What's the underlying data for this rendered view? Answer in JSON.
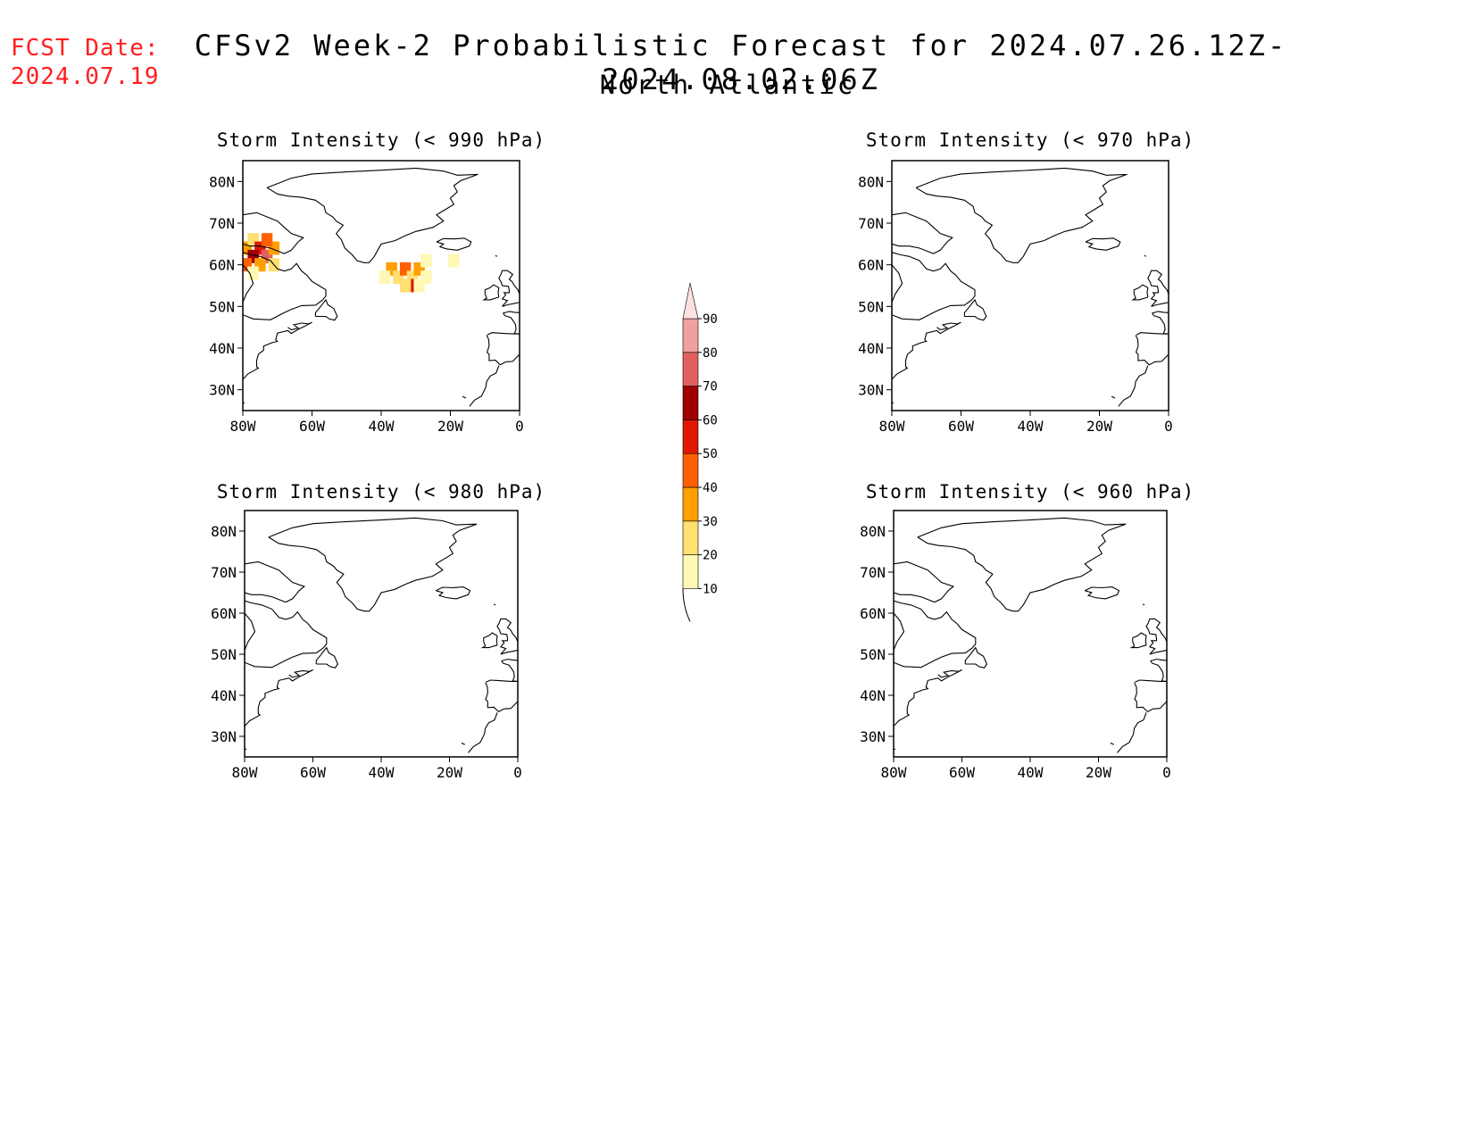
{
  "header": {
    "fcst_label": "FCST Date:",
    "fcst_date": "2024.07.19",
    "title": "CFSv2 Week-2 Probabilistic Forecast for 2024.07.26.12Z-2024.08.02.06Z",
    "region": "North Atlantic"
  },
  "map_extent": {
    "lon_min": -80,
    "lon_max": 0,
    "lat_min": 25,
    "lat_max": 85
  },
  "ticks": {
    "lat": [
      {
        "value": 80,
        "label": "80N"
      },
      {
        "value": 70,
        "label": "70N"
      },
      {
        "value": 60,
        "label": "60N"
      },
      {
        "value": 50,
        "label": "50N"
      },
      {
        "value": 40,
        "label": "40N"
      },
      {
        "value": 30,
        "label": "30N"
      }
    ],
    "lon": [
      {
        "value": -80,
        "label": "80W"
      },
      {
        "value": -60,
        "label": "60W"
      },
      {
        "value": -40,
        "label": "40W"
      },
      {
        "value": -20,
        "label": "20W"
      },
      {
        "value": 0,
        "label": "0"
      }
    ]
  },
  "panels": [
    {
      "id": "p990",
      "title": "Storm Intensity (< 990 hPa)",
      "probability_cells": [
        {
          "lon": -79,
          "lat": 64,
          "value": 30
        },
        {
          "lon": -77,
          "lat": 66,
          "value": 20
        },
        {
          "lon": -75,
          "lat": 64,
          "value": 50
        },
        {
          "lon": -73,
          "lat": 62,
          "value": 70
        },
        {
          "lon": -77,
          "lat": 62,
          "value": 60
        },
        {
          "lon": -79,
          "lat": 60,
          "value": 40
        },
        {
          "lon": -75,
          "lat": 60,
          "value": 30
        },
        {
          "lon": -71,
          "lat": 64,
          "value": 30
        },
        {
          "lon": -71,
          "lat": 60,
          "value": 20
        },
        {
          "lon": -73,
          "lat": 66,
          "value": 40
        },
        {
          "lon": -77,
          "lat": 58,
          "value": 10
        },
        {
          "lon": -37,
          "lat": 59,
          "value": 30
        },
        {
          "lon": -39,
          "lat": 57,
          "value": 10
        },
        {
          "lon": -35,
          "lat": 57,
          "value": 20
        },
        {
          "lon": -33,
          "lat": 59,
          "value": 40
        },
        {
          "lon": -31,
          "lat": 57,
          "value": 20
        },
        {
          "lon": -31,
          "lat": 55,
          "value": 50
        },
        {
          "lon": -29,
          "lat": 59,
          "value": 30
        },
        {
          "lon": -27,
          "lat": 57,
          "value": 10
        },
        {
          "lon": -33,
          "lat": 55,
          "value": 20
        },
        {
          "lon": -29,
          "lat": 55,
          "value": 10
        },
        {
          "lon": -27,
          "lat": 61,
          "value": 10
        },
        {
          "lon": -19,
          "lat": 61,
          "value": 10
        }
      ]
    },
    {
      "id": "p970",
      "title": "Storm Intensity (< 970 hPa)",
      "probability_cells": []
    },
    {
      "id": "p980",
      "title": "Storm Intensity (< 980 hPa)",
      "probability_cells": []
    },
    {
      "id": "p960",
      "title": "Storm Intensity (< 960 hPa)",
      "probability_cells": []
    }
  ],
  "colorbar": {
    "levels": [
      10,
      20,
      30,
      40,
      50,
      60,
      70,
      80,
      90
    ],
    "labels": [
      "10",
      "20",
      "30",
      "40",
      "50",
      "60",
      "70",
      "80",
      "90"
    ],
    "colors": [
      "#fff8b4",
      "#ffe070",
      "#ffa000",
      "#ff6000",
      "#e01800",
      "#a00000",
      "#e06060",
      "#f0a0a0",
      "#ffe0e0"
    ]
  },
  "colors": {
    "coastline": "#000000",
    "frame": "#000000"
  }
}
